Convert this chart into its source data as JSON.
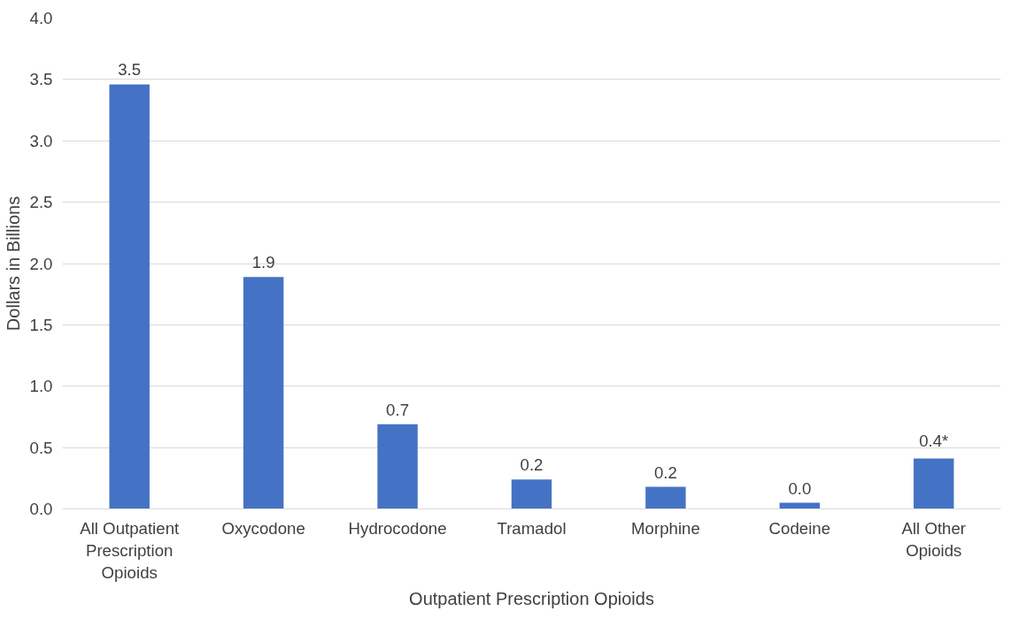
{
  "chart_data": {
    "type": "bar",
    "xlabel": "Outpatient Prescription Opioids",
    "ylabel": "Dollars in Billions",
    "categories": [
      "All Outpatient Prescription Opioids",
      "Oxycodone",
      "Hydrocodone",
      "Tramadol",
      "Morphine",
      "Codeine",
      "All Other Opioids"
    ],
    "values": [
      3.46,
      1.89,
      0.69,
      0.24,
      0.18,
      0.05,
      0.41
    ],
    "value_labels": [
      "3.5",
      "1.9",
      "0.7",
      "0.2",
      "0.2",
      "0.0",
      "0.4*"
    ],
    "color": "#4472c4",
    "ylim": [
      0,
      4
    ],
    "yticks": [
      {
        "value": 0,
        "label": "0.0"
      },
      {
        "value": 0.5,
        "label": "0.5"
      },
      {
        "value": 1,
        "label": "1.0"
      },
      {
        "value": 1.5,
        "label": "1.5"
      },
      {
        "value": 2,
        "label": "2.0"
      },
      {
        "value": 2.5,
        "label": "2.5"
      },
      {
        "value": 3,
        "label": "3.0"
      },
      {
        "value": 3.5,
        "label": "3.5"
      },
      {
        "value": 4,
        "label": "4.0"
      }
    ],
    "grid": "y"
  }
}
